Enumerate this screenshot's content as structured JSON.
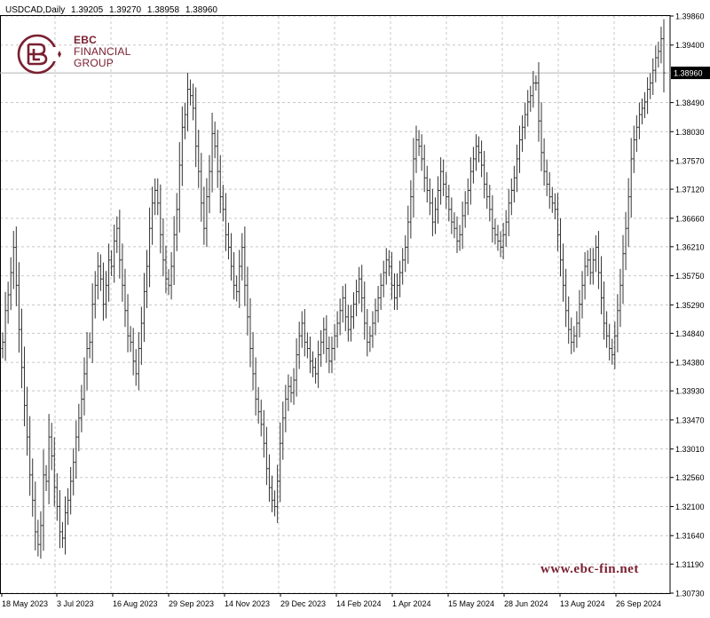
{
  "header": {
    "symbol": "USDCAD,Daily",
    "open": "1.39205",
    "high": "1.39270",
    "low": "1.38958",
    "close": "1.38960"
  },
  "branding": {
    "logo_line1": "EBC",
    "logo_line2": "FINANCIAL",
    "logo_line3": "GROUP",
    "website": "www.ebc-fin.net",
    "brand_color": "#7a2030"
  },
  "colors": {
    "bars": "#333333",
    "grid": "#c8c8c8",
    "price_line": "#b4b4b4",
    "background": "#ffffff"
  },
  "chart_data": {
    "type": "ohlc",
    "title": "USDCAD,Daily",
    "current_price": 1.3896,
    "current_price_label": "1.38960",
    "ylim": [
      1.3073,
      1.3986
    ],
    "y_ticks": [
      1.3986,
      1.394,
      1.3849,
      1.3803,
      1.3757,
      1.3712,
      1.3666,
      1.3621,
      1.3575,
      1.3529,
      1.3484,
      1.3438,
      1.3393,
      1.3347,
      1.3301,
      1.3256,
      1.321,
      1.3164,
      1.3119,
      1.3073
    ],
    "y_tick_labels": [
      "1.39860",
      "1.39400",
      "1.38490",
      "1.38030",
      "1.37570",
      "1.37120",
      "1.36660",
      "1.36210",
      "1.35750",
      "1.35290",
      "1.34840",
      "1.34380",
      "1.33930",
      "1.33470",
      "1.33010",
      "1.32560",
      "1.32100",
      "1.31640",
      "1.31190",
      "1.30730"
    ],
    "x_tick_labels": [
      "18 May 2023",
      "3 Jul 2023",
      "16 Aug 2023",
      "29 Sep 2023",
      "14 Nov 2023",
      "29 Dec 2023",
      "14 Feb 2024",
      "1 Apr 2024",
      "15 May 2024",
      "28 Jun 2024",
      "13 Aug 2024",
      "26 Sep 2024"
    ],
    "grid": true,
    "series": [
      {
        "close": [
          1.347,
          1.352,
          1.3545,
          1.358,
          1.362,
          1.356,
          1.349,
          1.343,
          1.337,
          1.332,
          1.326,
          1.322,
          1.317,
          1.315,
          1.318,
          1.326,
          1.325,
          1.332,
          1.329,
          1.324,
          1.321,
          1.317,
          1.316,
          1.32,
          1.322,
          1.325,
          1.328,
          1.332,
          1.335,
          1.338,
          1.342,
          1.346,
          1.347,
          1.353,
          1.356,
          1.359,
          1.357,
          1.353,
          1.356,
          1.36,
          1.359,
          1.363,
          1.365,
          1.36,
          1.356,
          1.352,
          1.348,
          1.347,
          1.344,
          1.342,
          1.346,
          1.35,
          1.355,
          1.359,
          1.365,
          1.369,
          1.371,
          1.369,
          1.364,
          1.36,
          1.357,
          1.356,
          1.359,
          1.364,
          1.368,
          1.375,
          1.381,
          1.383,
          1.387,
          1.386,
          1.384,
          1.378,
          1.374,
          1.369,
          1.365,
          1.37,
          1.374,
          1.38,
          1.378,
          1.374,
          1.37,
          1.368,
          1.364,
          1.362,
          1.359,
          1.356,
          1.355,
          1.359,
          1.362,
          1.356,
          1.351,
          1.346,
          1.342,
          1.338,
          1.336,
          1.334,
          1.331,
          1.327,
          1.324,
          1.322,
          1.321,
          1.325,
          1.331,
          1.335,
          1.338,
          1.34,
          1.339,
          1.341,
          1.345,
          1.348,
          1.35,
          1.347,
          1.346,
          1.344,
          1.343,
          1.342,
          1.345,
          1.347,
          1.349,
          1.346,
          1.344,
          1.346,
          1.348,
          1.35,
          1.352,
          1.354,
          1.351,
          1.349,
          1.351,
          1.353,
          1.355,
          1.357,
          1.354,
          1.35,
          1.347,
          1.348,
          1.35,
          1.352,
          1.354,
          1.356,
          1.358,
          1.36,
          1.359,
          1.356,
          1.354,
          1.356,
          1.358,
          1.36,
          1.362,
          1.366,
          1.37,
          1.376,
          1.379,
          1.378,
          1.376,
          1.373,
          1.371,
          1.369,
          1.366,
          1.368,
          1.371,
          1.374,
          1.372,
          1.37,
          1.368,
          1.366,
          1.365,
          1.363,
          1.364,
          1.367,
          1.369,
          1.371,
          1.374,
          1.376,
          1.378,
          1.377,
          1.375,
          1.372,
          1.37,
          1.368,
          1.365,
          1.364,
          1.363,
          1.362,
          1.364,
          1.366,
          1.369,
          1.371,
          1.373,
          1.376,
          1.379,
          1.381,
          1.383,
          1.385,
          1.386,
          1.388,
          1.388,
          1.382,
          1.377,
          1.374,
          1.372,
          1.37,
          1.369,
          1.368,
          1.364,
          1.36,
          1.356,
          1.352,
          1.349,
          1.347,
          1.348,
          1.35,
          1.353,
          1.356,
          1.359,
          1.36,
          1.358,
          1.36,
          1.362,
          1.358,
          1.354,
          1.35,
          1.348,
          1.346,
          1.345,
          1.348,
          1.352,
          1.356,
          1.361,
          1.365,
          1.37,
          1.376,
          1.379,
          1.381,
          1.383,
          1.384,
          1.385,
          1.387,
          1.388,
          1.39,
          1.392,
          1.393,
          1.395,
          1.3896
        ]
      }
    ]
  }
}
